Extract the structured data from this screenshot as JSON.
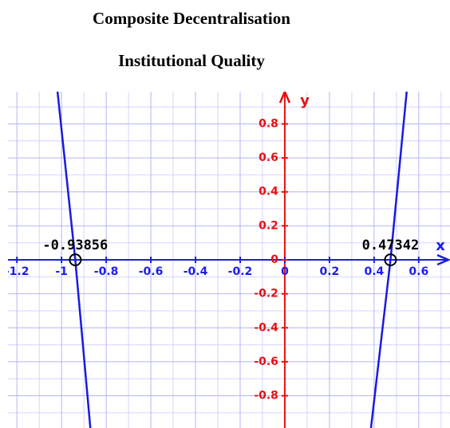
{
  "chart_data": {
    "type": "line",
    "title": "Composite Decentralisation",
    "subtitle": "Institutional Quality",
    "xlabel": "x",
    "ylabel": "y",
    "xlim": [
      -1.24,
      0.74
    ],
    "ylim": [
      -0.99,
      0.99
    ],
    "xticks": [
      -1.2,
      -1,
      -0.8,
      -0.6,
      -0.4,
      -0.2,
      0,
      0.2,
      0.4,
      0.6
    ],
    "yticks": [
      -0.8,
      -0.6,
      -0.4,
      -0.2,
      0,
      0.2,
      0.4,
      0.6,
      0.8
    ],
    "xminor": [
      -1.1,
      -0.9,
      -0.7,
      -0.5,
      -0.3,
      -0.1,
      0.1,
      0.3,
      0.5,
      0.7
    ],
    "yminor": [
      -0.9,
      -0.7,
      -0.5,
      -0.3,
      -0.1,
      0.1,
      0.3,
      0.5,
      0.7,
      0.9
    ],
    "grid": true,
    "series": [
      {
        "color": "#1a1ae0",
        "x": [
          -1.018,
          -0.93856,
          -0.871
        ],
        "values": [
          0.99,
          0,
          -0.99
        ]
      },
      {
        "color": "#1a1ae0",
        "x": [
          0.386,
          0.47342,
          0.546
        ],
        "values": [
          -0.99,
          0,
          0.99
        ]
      }
    ],
    "roots": [
      -0.93856,
      0.47342
    ]
  }
}
